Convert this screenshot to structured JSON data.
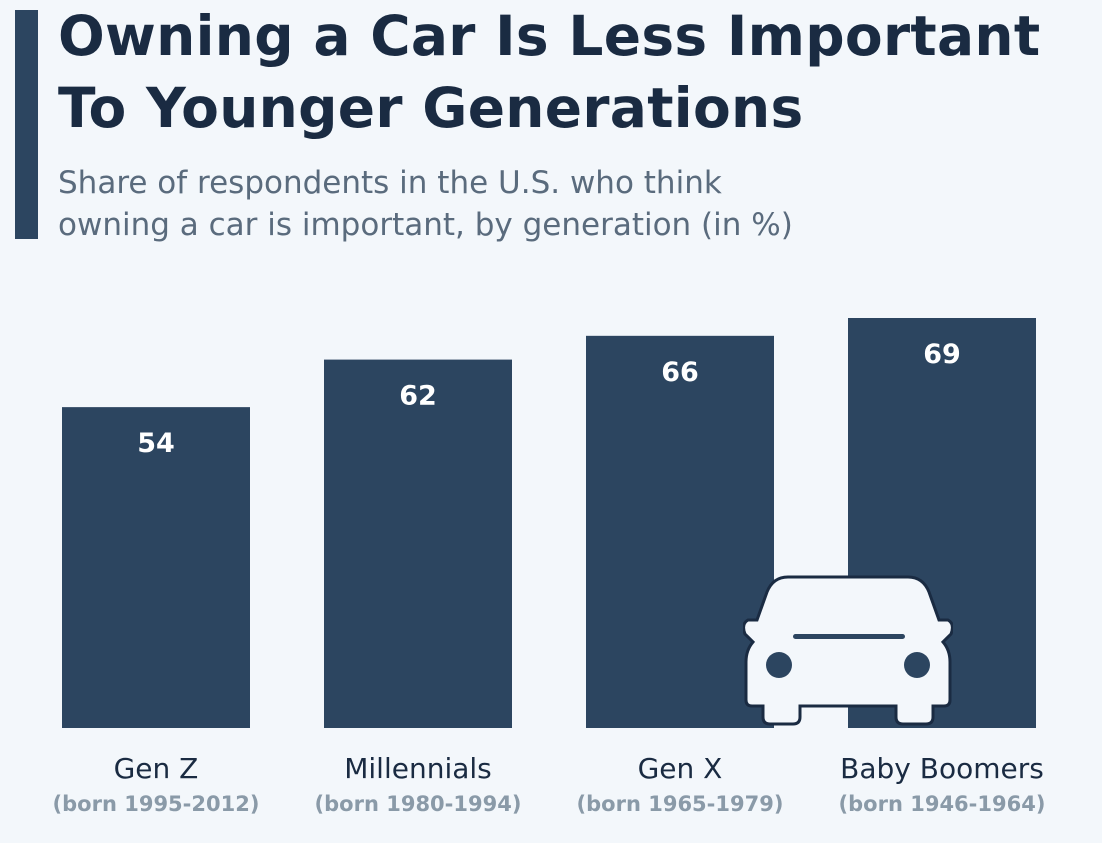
{
  "chart_data": {
    "type": "bar",
    "title": "Owning a Car Is Less Important To Younger Generations",
    "title_lines": [
      "Owning a Car Is Less Important",
      "To Younger Generations"
    ],
    "subtitle_lines": [
      "Share of respondents in the U.S. who think",
      "owning a car is important, by generation (in %)"
    ],
    "categories": [
      "Gen Z",
      "Millennials",
      "Gen X",
      "Baby Boomers"
    ],
    "category_sublabels": [
      "(born 1995-2012)",
      "(born 1980-1994)",
      "(born 1965-1979)",
      "(born 1946-1964)"
    ],
    "values": [
      54,
      62,
      66,
      69
    ],
    "ylim": [
      0,
      69
    ],
    "grid": false,
    "data_labels": "inside-top",
    "xlabel": "",
    "ylabel": ""
  },
  "colors": {
    "bar": "#2c4560",
    "background": "#f3f7fb",
    "title": "#1a2b42",
    "label": "#ffffff"
  },
  "icons": {
    "decoration": "car-icon"
  }
}
